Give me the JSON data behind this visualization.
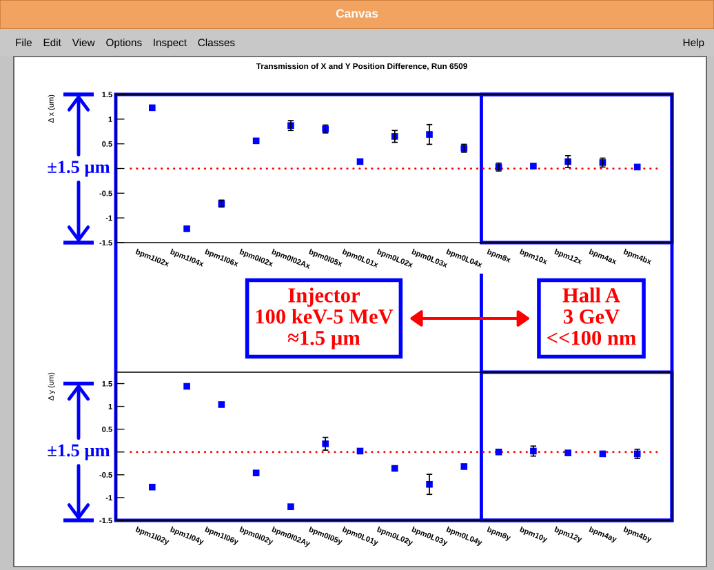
{
  "chart_data": [
    {
      "type": "other",
      "title": "Canvas",
      "annotations": [
        "File",
        "Edit",
        "View",
        "Options",
        "Inspect",
        "Classes",
        "Help"
      ]
    },
    {
      "type": "scatter",
      "title": "Transmission of X and Y Position Difference, Run 6509",
      "ylabel": "Δ x (um)",
      "categories": [
        "bpm1I02x",
        "bpm1I04x",
        "bpm1I06x",
        "bpm0I02x",
        "bpm0I02Ax",
        "bpm0I05x",
        "bpm0L01x",
        "bpm0L02x",
        "bpm0L03x",
        "bpm0L04x",
        "bpm8x",
        "bpm10x",
        "bpm12x",
        "bpm4ax",
        "bpm4bx"
      ],
      "series": [
        {
          "color": "#0000ff",
          "values": [
            1.23,
            -1.22,
            -0.71,
            0.56,
            0.87,
            0.8,
            0.14,
            0.65,
            0.69,
            0.41,
            0.03,
            0.05,
            0.14,
            0.12,
            0.03
          ],
          "errors": [
            null,
            null,
            0.07,
            null,
            0.1,
            0.08,
            null,
            0.12,
            0.2,
            0.08,
            0.08,
            null,
            0.12,
            0.09,
            null
          ]
        }
      ],
      "ylim": [
        -1.5,
        1.5
      ],
      "yticks": [
        -1.5,
        -1,
        -0.5,
        {
          "value": 0,
          "label": null
        },
        0.5,
        1,
        1.5
      ],
      "marker": "square",
      "ref_lines": [
        {
          "axis": "y",
          "value": 0,
          "color": "#ff0000",
          "line_style": "dotted"
        }
      ],
      "annotations": [
        "±1.5 µm",
        "Injector\n100 keV-5 MeV\n≈1.5 µm",
        "Hall A\n3 GeV\n<<100 nm"
      ]
    },
    {
      "type": "scatter",
      "ylabel": "Δ y (um)",
      "categories": [
        "bpm1I02y",
        "bpm1I04y",
        "bpm1I06y",
        "bpm0I02y",
        "bpm0I02Ay",
        "bpm0I05y",
        "bpm0L01y",
        "bpm0L02y",
        "bpm0L03y",
        "bpm0L04y",
        "bpm8y",
        "bpm10y",
        "bpm12y",
        "bpm4ay",
        "bpm4by"
      ],
      "series": [
        {
          "color": "#0000ff",
          "values": [
            -0.77,
            1.44,
            1.04,
            -0.46,
            -1.2,
            0.18,
            0.02,
            -0.36,
            -0.71,
            -0.32,
            0.0,
            0.02,
            -0.02,
            -0.04,
            -0.04
          ],
          "errors": [
            null,
            null,
            null,
            null,
            null,
            0.14,
            null,
            null,
            0.22,
            null,
            null,
            0.11,
            null,
            null,
            0.1
          ]
        }
      ],
      "ylim": [
        -1.5,
        1.75
      ],
      "yticks": [
        -1.5,
        -1,
        -0.5,
        {
          "value": 0,
          "label": null
        },
        0.5,
        1,
        1.5
      ],
      "marker": "square",
      "ref_lines": [
        {
          "axis": "y",
          "value": 0,
          "color": "#ff0000",
          "line_style": "dotted"
        }
      ],
      "annotations": [
        "±1.5 µm"
      ]
    }
  ]
}
